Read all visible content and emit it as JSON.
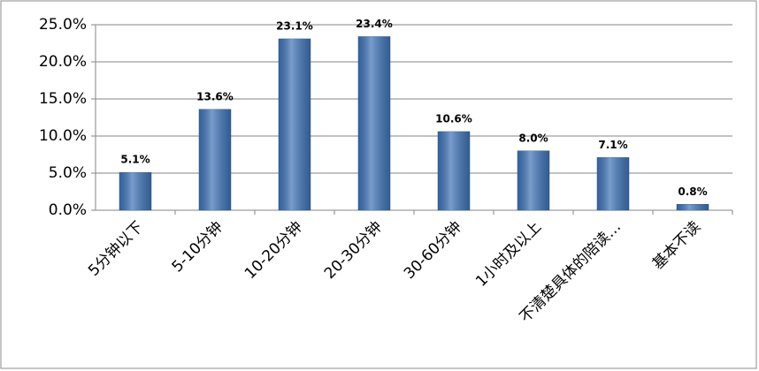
{
  "chart_data": {
    "type": "bar",
    "categories": [
      "5分钟以下",
      "5-10分钟",
      "10-20分钟",
      "20-30分钟",
      "30-60分钟",
      "1小时及以上",
      "不清楚具体的陪读…",
      "基本不读"
    ],
    "values": [
      5.1,
      13.6,
      23.1,
      23.4,
      10.6,
      8.0,
      7.1,
      0.8
    ],
    "value_labels": [
      "5.1%",
      "13.6%",
      "23.1%",
      "23.4%",
      "10.6%",
      "8.0%",
      "7.1%",
      "0.8%"
    ],
    "color": "#3f74b8",
    "ylim": [
      0,
      25
    ],
    "yticks": [
      {
        "value": 0,
        "label": "0.0%"
      },
      {
        "value": 5,
        "label": "5.0%"
      },
      {
        "value": 10,
        "label": "10.0%"
      },
      {
        "value": 15,
        "label": "15.0%"
      },
      {
        "value": 20,
        "label": "20.0%"
      },
      {
        "value": 25,
        "label": "25.0%"
      }
    ],
    "grid": true
  }
}
